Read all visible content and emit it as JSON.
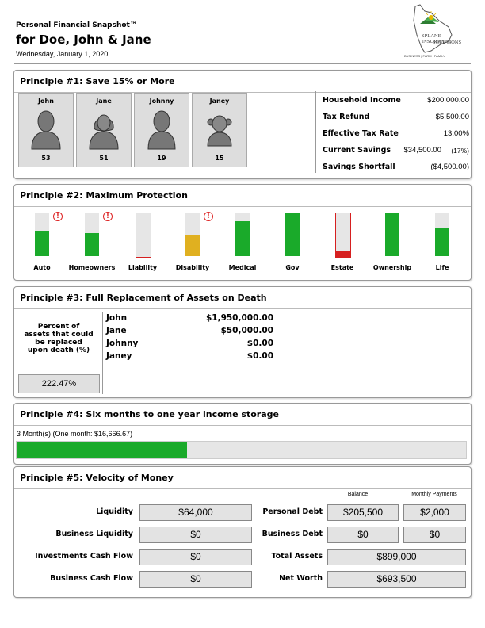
{
  "header": {
    "snapshot_title": "Personal Financial Snapshot™",
    "client_name": "for Doe, John & Jane",
    "date": "Wednesday, January 1, 2020"
  },
  "logo": {
    "brand_line1": "SPLANE INSURANCE",
    "brand_line2": "SOLUTIONS",
    "tagline": "BUSINESS | FARM | FAMILY"
  },
  "principle1": {
    "title": "Principle #1: Save 15% or More",
    "people": [
      {
        "name": "John",
        "age": "53",
        "icon": "adult-male-icon"
      },
      {
        "name": "Jane",
        "age": "51",
        "icon": "adult-female-icon"
      },
      {
        "name": "Johnny",
        "age": "19",
        "icon": "young-male-icon"
      },
      {
        "name": "Janey",
        "age": "15",
        "icon": "young-female-icon"
      }
    ],
    "stats": [
      {
        "label": "Household Income",
        "value": "$200,000.00"
      },
      {
        "label": "Tax Refund",
        "value": "$5,500.00"
      },
      {
        "label": "Effective Tax Rate",
        "value": "13.00%"
      },
      {
        "label": "Current Savings",
        "value": "$34,500.00",
        "note": "(17%)"
      },
      {
        "label": "Savings Shortfall",
        "value": "($4,500.00)"
      }
    ]
  },
  "principle2": {
    "title": "Principle #2: Maximum Protection",
    "coverages": [
      {
        "label": "Auto",
        "level": 0.58,
        "color": "#1aaa2a",
        "warning": true,
        "outlined": false
      },
      {
        "label": "Homeowners",
        "level": 0.52,
        "color": "#1aaa2a",
        "warning": true,
        "outlined": false
      },
      {
        "label": "Liability",
        "level": 0.0,
        "color": "#d62020",
        "warning": false,
        "outlined": true
      },
      {
        "label": "Disability",
        "level": 0.5,
        "color": "#e0b020",
        "warning": true,
        "outlined": false
      },
      {
        "label": "Medical",
        "level": 0.8,
        "color": "#1aaa2a",
        "warning": false,
        "outlined": false
      },
      {
        "label": "Gov",
        "level": 1.0,
        "color": "#1aaa2a",
        "warning": false,
        "outlined": false
      },
      {
        "label": "Estate",
        "level": 0.13,
        "color": "#d62020",
        "warning": false,
        "outlined": true
      },
      {
        "label": "Ownership",
        "level": 1.0,
        "color": "#1aaa2a",
        "warning": false,
        "outlined": false
      },
      {
        "label": "Life",
        "level": 0.65,
        "color": "#1aaa2a",
        "warning": false,
        "outlined": false
      }
    ],
    "warning_glyph": "!"
  },
  "principle3": {
    "title": "Principle #3: Full Replacement of Assets on Death",
    "percent_label": "Percent of assets that could be replaced upon death (%)",
    "percent_value": "222.47%",
    "rows": [
      {
        "name": "John",
        "value": "$1,950,000.00"
      },
      {
        "name": "Jane",
        "value": "$50,000.00"
      },
      {
        "name": "Johnny",
        "value": "$0.00"
      },
      {
        "name": "Janey",
        "value": "$0.00"
      }
    ]
  },
  "principle4": {
    "title": "Principle #4: Six months to one year income storage",
    "subtitle": "3 Month(s) (One month: $16,666.67)",
    "progress": 0.38,
    "color": "#1aaa2a"
  },
  "principle5": {
    "title": "Principle #5: Velocity of Money",
    "col_balance": "Balance",
    "col_monthly": "Monthly Payments",
    "left": [
      {
        "label": "Liquidity",
        "value": "$64,000"
      },
      {
        "label": "Business Liquidity",
        "value": "$0"
      },
      {
        "label": "Investments Cash Flow",
        "value": "$0"
      },
      {
        "label": "Business Cash Flow",
        "value": "$0"
      }
    ],
    "personal_debt": {
      "label": "Personal Debt",
      "balance": "$205,500",
      "monthly": "$2,000"
    },
    "business_debt": {
      "label": "Business Debt",
      "balance": "$0",
      "monthly": "$0"
    },
    "total_assets": {
      "label": "Total Assets",
      "value": "$899,000"
    },
    "net_worth": {
      "label": "Net Worth",
      "value": "$693,500"
    }
  }
}
